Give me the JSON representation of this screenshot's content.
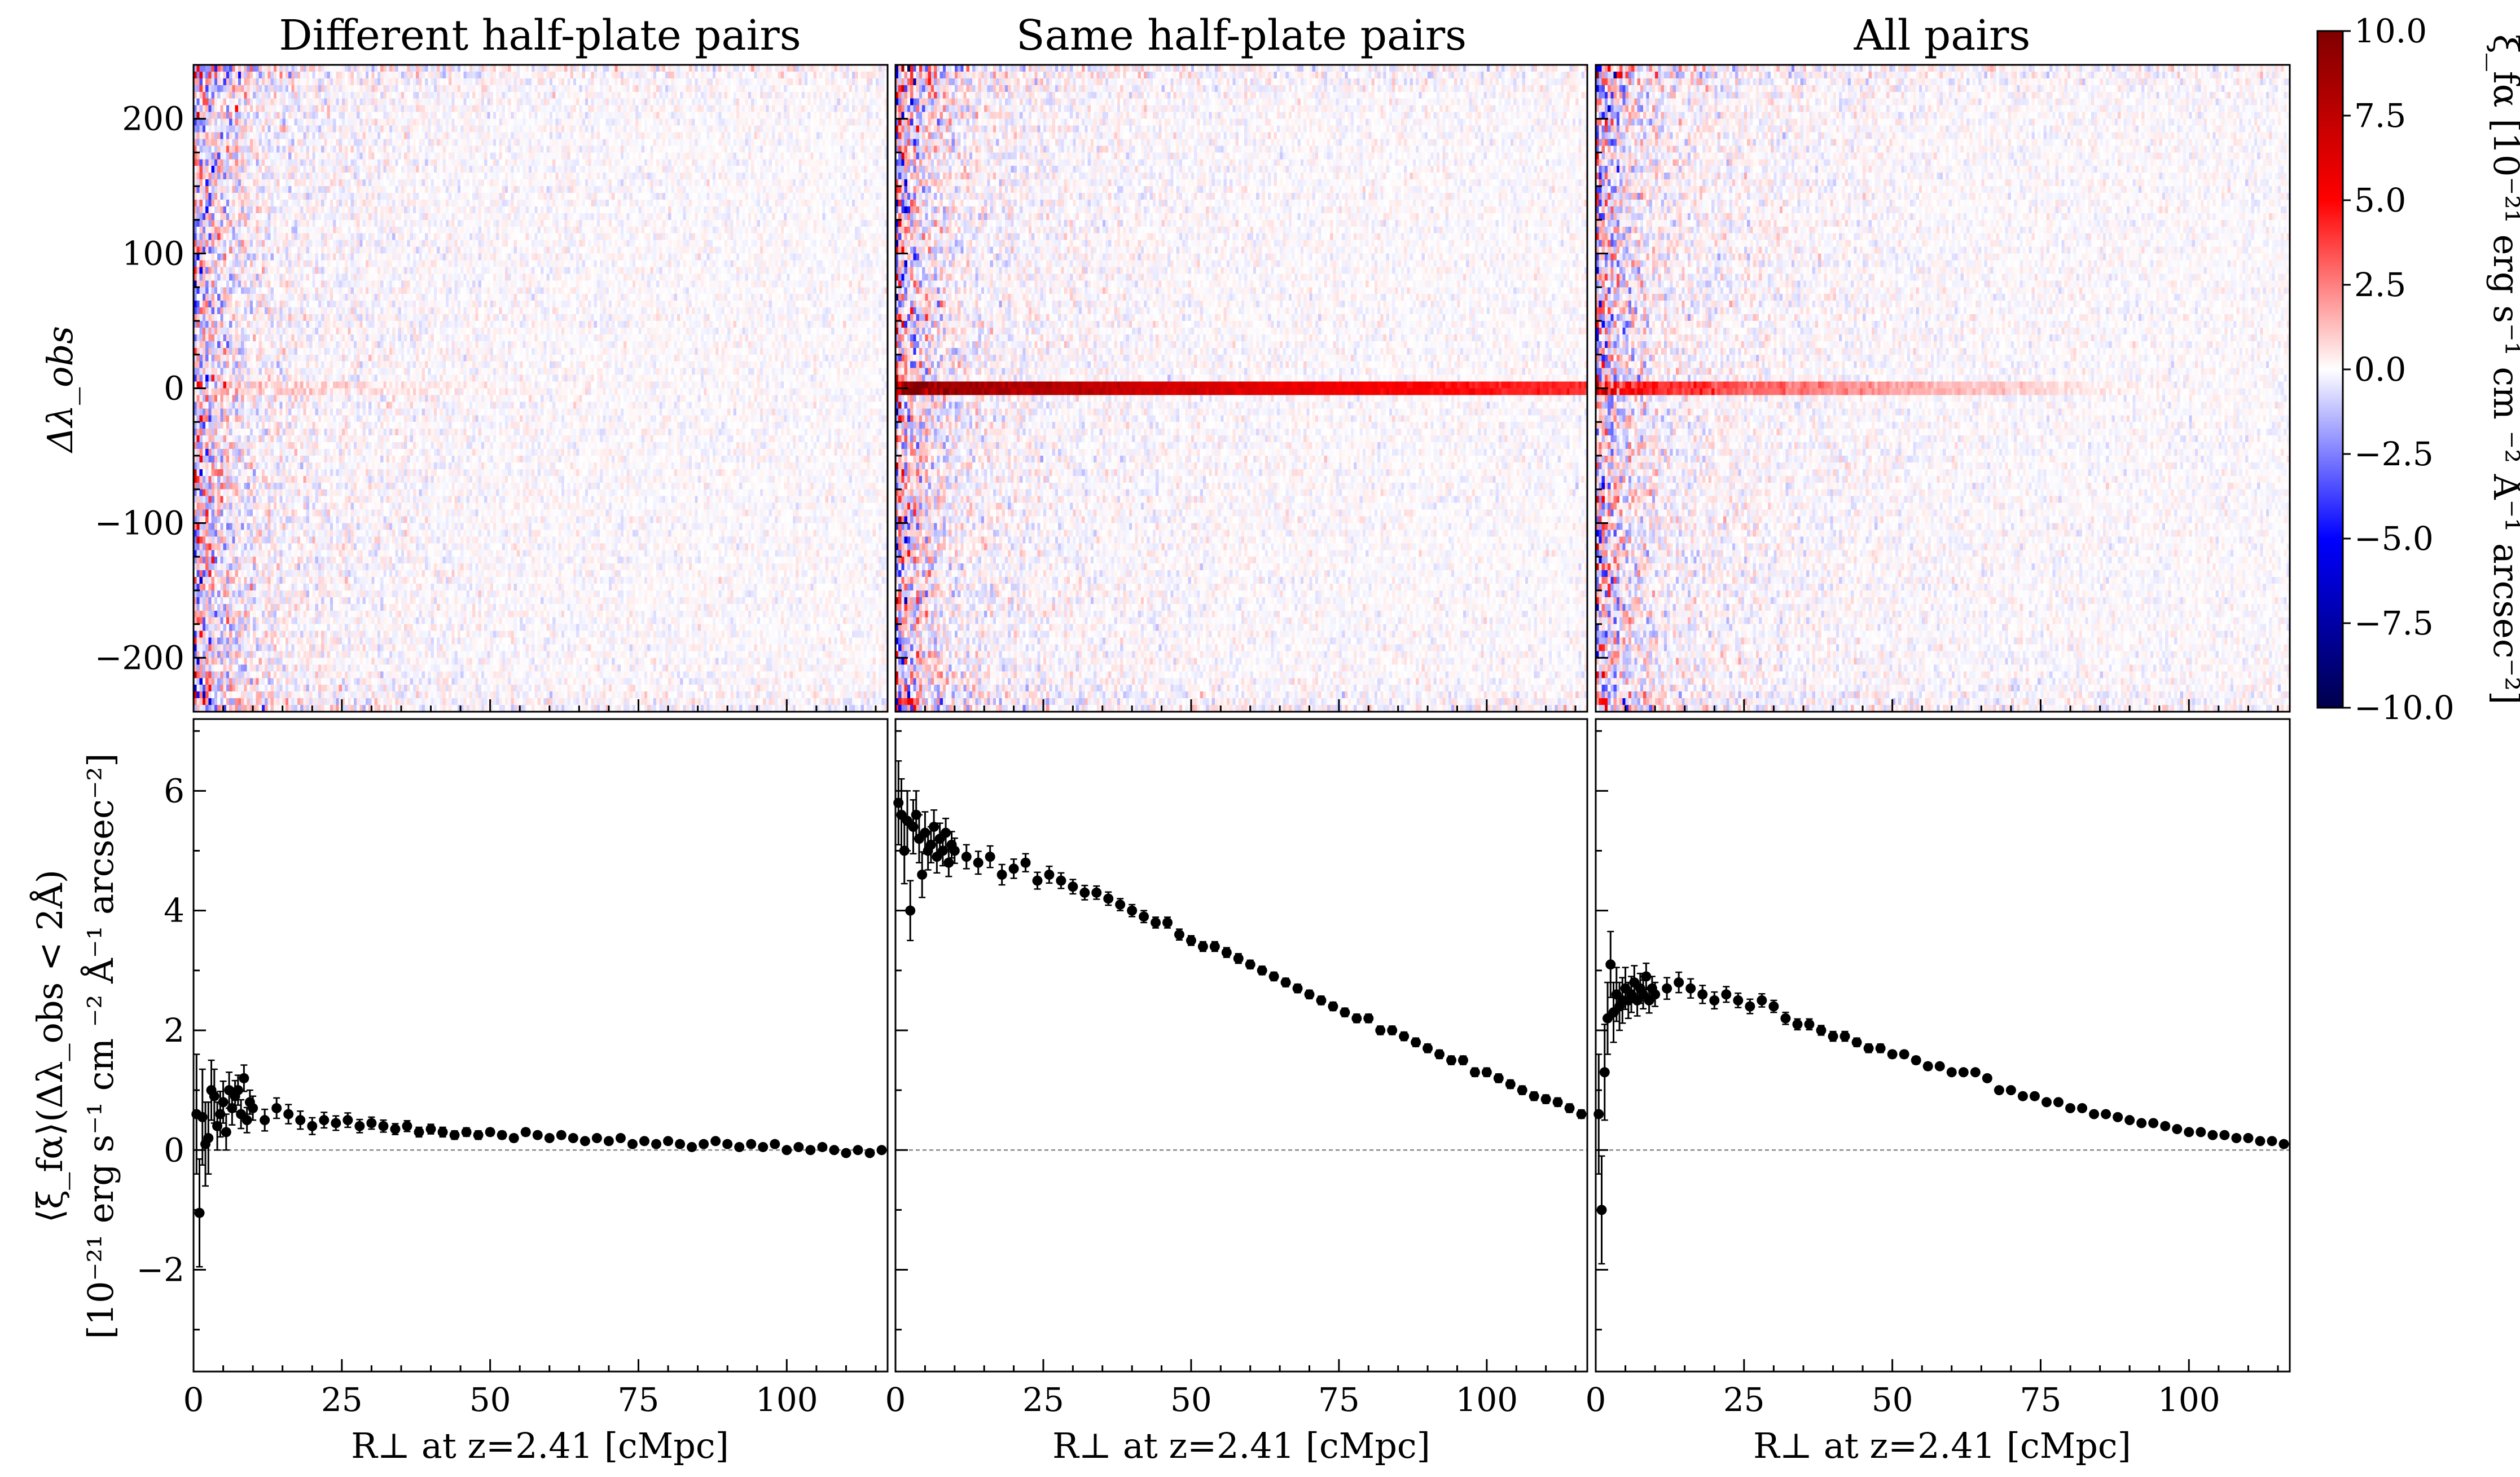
{
  "chart_data": [
    {
      "type": "heatmap",
      "title": "Different half-plate pairs",
      "xlim": [
        0,
        117
      ],
      "ylim": [
        -240,
        240
      ],
      "ylabel": "Δλ_obs",
      "yticks": [
        -200,
        -100,
        0,
        100,
        200
      ],
      "zero_line_strength": 0.12,
      "low_r_noise_strength": 0.6,
      "seed": 11
    },
    {
      "type": "heatmap",
      "title": "Same half-plate pairs",
      "xlim": [
        0,
        117
      ],
      "ylim": [
        -240,
        240
      ],
      "yticks": [
        -200,
        -100,
        0,
        100,
        200
      ],
      "zero_line_strength": 1.0,
      "low_r_noise_strength": 0.7,
      "seed": 23
    },
    {
      "type": "heatmap",
      "title": "All pairs",
      "xlim": [
        0,
        117
      ],
      "ylim": [
        -240,
        240
      ],
      "yticks": [
        -200,
        -100,
        0,
        100,
        200
      ],
      "zero_line_strength": 0.55,
      "low_r_noise_strength": 0.6,
      "seed": 37
    },
    {
      "type": "scatter",
      "title": "",
      "xlabel": "R⊥ at z=2.41 [cMpc]",
      "ylabel_line1": "⟨ξ_fα⟩(Δλ_obs < 2Å)",
      "ylabel_line2": "[10⁻²¹ erg s⁻¹ cm ⁻² Å⁻¹ arcsec⁻²]",
      "xlim": [
        0,
        117
      ],
      "ylim": [
        -3.7,
        7.2
      ],
      "xticks": [
        0,
        25,
        50,
        75,
        100
      ],
      "yticks": [
        -2,
        0,
        2,
        4,
        6
      ],
      "series": [
        {
          "x": [
            0.5,
            1,
            1.5,
            2,
            2.5,
            3,
            3.5,
            4,
            4.5,
            5,
            5.5,
            6,
            6.5,
            7,
            7.5,
            8,
            8.5,
            9,
            9.5,
            10,
            12,
            14,
            16,
            18,
            20,
            22,
            24,
            26,
            28,
            30,
            32,
            34,
            36,
            38,
            40,
            42,
            44,
            46,
            48,
            50,
            52,
            54,
            56,
            58,
            60,
            62,
            64,
            66,
            68,
            70,
            72,
            74,
            76,
            78,
            80,
            82,
            84,
            86,
            88,
            90,
            92,
            94,
            96,
            98,
            100,
            102,
            104,
            106,
            108,
            110,
            112,
            114,
            116
          ],
          "y": [
            0.6,
            -1.05,
            0.55,
            0.1,
            0.2,
            1.0,
            0.9,
            0.4,
            0.6,
            0.8,
            0.3,
            1.0,
            0.7,
            0.9,
            1.0,
            0.6,
            1.2,
            0.5,
            0.8,
            0.7,
            0.5,
            0.7,
            0.6,
            0.5,
            0.4,
            0.5,
            0.45,
            0.5,
            0.4,
            0.45,
            0.4,
            0.35,
            0.4,
            0.3,
            0.35,
            0.3,
            0.25,
            0.3,
            0.25,
            0.3,
            0.25,
            0.2,
            0.3,
            0.25,
            0.2,
            0.25,
            0.2,
            0.15,
            0.2,
            0.15,
            0.2,
            0.1,
            0.15,
            0.1,
            0.15,
            0.1,
            0.05,
            0.1,
            0.15,
            0.1,
            0.05,
            0.1,
            0.05,
            0.1,
            0.0,
            0.05,
            0.0,
            0.05,
            0.0,
            -0.05,
            0.0,
            -0.05,
            0.0
          ],
          "err": [
            1.0,
            0.9,
            0.8,
            0.7,
            0.6,
            0.5,
            0.45,
            0.4,
            0.38,
            0.35,
            0.3,
            0.3,
            0.28,
            0.26,
            0.25,
            0.24,
            0.22,
            0.21,
            0.2,
            0.2,
            0.18,
            0.17,
            0.16,
            0.15,
            0.14,
            0.13,
            0.12,
            0.12,
            0.11,
            0.1,
            0.1,
            0.09,
            0.09,
            0.08,
            0.08,
            0.08,
            0.07,
            0.07,
            0.07,
            0.06,
            0.06,
            0.06,
            0.06,
            0.05,
            0.05,
            0.05,
            0.05,
            0.05,
            0.05,
            0.04,
            0.04,
            0.04,
            0.04,
            0.04,
            0.04,
            0.04,
            0.04,
            0.04,
            0.04,
            0.04,
            0.04,
            0.04,
            0.04,
            0.04,
            0.04,
            0.04,
            0.04,
            0.04,
            0.04,
            0.04,
            0.04,
            0.04,
            0.04
          ]
        }
      ]
    },
    {
      "type": "scatter",
      "title": "",
      "xlabel": "R⊥ at z=2.41 [cMpc]",
      "xlim": [
        0,
        117
      ],
      "ylim": [
        -3.7,
        7.2
      ],
      "xticks": [
        0,
        25,
        50,
        75,
        100
      ],
      "yticks": [
        -2,
        0,
        2,
        4,
        6
      ],
      "series": [
        {
          "x": [
            0.5,
            1,
            1.5,
            2,
            2.5,
            3,
            3.5,
            4,
            4.5,
            5,
            5.5,
            6,
            6.5,
            7,
            7.5,
            8,
            8.5,
            9,
            9.5,
            10,
            12,
            14,
            16,
            18,
            20,
            22,
            24,
            26,
            28,
            30,
            32,
            34,
            36,
            38,
            40,
            42,
            44,
            46,
            48,
            50,
            52,
            54,
            56,
            58,
            60,
            62,
            64,
            66,
            68,
            70,
            72,
            74,
            76,
            78,
            80,
            82,
            84,
            86,
            88,
            90,
            92,
            94,
            96,
            98,
            100,
            102,
            104,
            106,
            108,
            110,
            112,
            114,
            116
          ],
          "y": [
            5.8,
            5.6,
            5.0,
            5.5,
            4.0,
            5.4,
            5.6,
            5.2,
            4.6,
            5.3,
            5.0,
            5.1,
            5.4,
            4.9,
            5.2,
            5.0,
            5.3,
            4.8,
            5.1,
            5.0,
            4.9,
            4.8,
            4.9,
            4.6,
            4.7,
            4.8,
            4.5,
            4.6,
            4.5,
            4.4,
            4.3,
            4.3,
            4.2,
            4.1,
            4.0,
            3.9,
            3.8,
            3.8,
            3.6,
            3.5,
            3.4,
            3.4,
            3.3,
            3.2,
            3.1,
            3.0,
            2.9,
            2.8,
            2.7,
            2.6,
            2.5,
            2.4,
            2.3,
            2.2,
            2.2,
            2.0,
            2.0,
            1.9,
            1.8,
            1.7,
            1.6,
            1.5,
            1.5,
            1.3,
            1.3,
            1.2,
            1.1,
            1.0,
            0.9,
            0.85,
            0.8,
            0.7,
            0.6
          ],
          "err": [
            0.7,
            0.6,
            0.55,
            0.5,
            0.5,
            0.45,
            0.4,
            0.4,
            0.38,
            0.35,
            0.32,
            0.3,
            0.28,
            0.27,
            0.26,
            0.25,
            0.24,
            0.23,
            0.22,
            0.21,
            0.2,
            0.19,
            0.18,
            0.17,
            0.16,
            0.15,
            0.14,
            0.14,
            0.13,
            0.12,
            0.12,
            0.11,
            0.11,
            0.1,
            0.1,
            0.1,
            0.09,
            0.09,
            0.09,
            0.08,
            0.08,
            0.08,
            0.08,
            0.08,
            0.07,
            0.07,
            0.07,
            0.07,
            0.07,
            0.07,
            0.07,
            0.07,
            0.07,
            0.07,
            0.07,
            0.07,
            0.07,
            0.07,
            0.07,
            0.07,
            0.07,
            0.07,
            0.07,
            0.07,
            0.07,
            0.07,
            0.07,
            0.07,
            0.07,
            0.07,
            0.07,
            0.07,
            0.07
          ]
        }
      ]
    },
    {
      "type": "scatter",
      "title": "",
      "xlabel": "R⊥ at z=2.41 [cMpc]",
      "xlim": [
        0,
        117
      ],
      "ylim": [
        -3.7,
        7.2
      ],
      "xticks": [
        0,
        25,
        50,
        75,
        100
      ],
      "yticks": [
        -2,
        0,
        2,
        4,
        6
      ],
      "series": [
        {
          "x": [
            0.5,
            1,
            1.5,
            2,
            2.5,
            3,
            3.5,
            4,
            4.5,
            5,
            5.5,
            6,
            6.5,
            7,
            7.5,
            8,
            8.5,
            9,
            9.5,
            10,
            12,
            14,
            16,
            18,
            20,
            22,
            24,
            26,
            28,
            30,
            32,
            34,
            36,
            38,
            40,
            42,
            44,
            46,
            48,
            50,
            52,
            54,
            56,
            58,
            60,
            62,
            64,
            66,
            68,
            70,
            72,
            74,
            76,
            78,
            80,
            82,
            84,
            86,
            88,
            90,
            92,
            94,
            96,
            98,
            100,
            102,
            104,
            106,
            108,
            110,
            112,
            114,
            116
          ],
          "y": [
            0.6,
            -1.0,
            1.3,
            2.2,
            3.1,
            2.3,
            2.6,
            2.4,
            2.5,
            2.7,
            2.5,
            2.6,
            2.8,
            2.5,
            2.7,
            2.6,
            2.9,
            2.5,
            2.7,
            2.6,
            2.7,
            2.8,
            2.7,
            2.6,
            2.5,
            2.6,
            2.5,
            2.4,
            2.5,
            2.4,
            2.2,
            2.1,
            2.1,
            2.0,
            1.9,
            1.9,
            1.8,
            1.7,
            1.7,
            1.6,
            1.6,
            1.5,
            1.4,
            1.4,
            1.3,
            1.3,
            1.3,
            1.2,
            1.0,
            1.0,
            0.9,
            0.9,
            0.8,
            0.8,
            0.7,
            0.7,
            0.6,
            0.6,
            0.55,
            0.5,
            0.45,
            0.45,
            0.4,
            0.35,
            0.3,
            0.3,
            0.25,
            0.25,
            0.2,
            0.2,
            0.15,
            0.15,
            0.1
          ],
          "err": [
            1.0,
            0.9,
            0.8,
            0.6,
            0.55,
            0.5,
            0.45,
            0.4,
            0.38,
            0.35,
            0.3,
            0.3,
            0.28,
            0.26,
            0.25,
            0.24,
            0.22,
            0.21,
            0.2,
            0.2,
            0.18,
            0.17,
            0.16,
            0.15,
            0.14,
            0.13,
            0.12,
            0.12,
            0.11,
            0.1,
            0.1,
            0.09,
            0.09,
            0.08,
            0.08,
            0.08,
            0.07,
            0.07,
            0.07,
            0.06,
            0.06,
            0.06,
            0.06,
            0.05,
            0.05,
            0.05,
            0.05,
            0.05,
            0.05,
            0.04,
            0.04,
            0.04,
            0.04,
            0.04,
            0.04,
            0.04,
            0.04,
            0.04,
            0.04,
            0.04,
            0.04,
            0.04,
            0.04,
            0.04,
            0.04,
            0.04,
            0.04,
            0.04,
            0.04,
            0.04,
            0.04,
            0.04,
            0.04
          ]
        }
      ]
    }
  ],
  "colorbar": {
    "label": "ξ_fα [10⁻²¹ erg s⁻¹ cm ⁻² Å⁻¹ arcsec⁻²]",
    "range": [
      -10,
      10
    ],
    "ticks": [
      -10,
      -7.5,
      -5,
      -2.5,
      0,
      2.5,
      5,
      7.5,
      10
    ],
    "tick_labels": [
      "−10.0",
      "−7.5",
      "−5.0",
      "−2.5",
      "0.0",
      "2.5",
      "5.0",
      "7.5",
      "10.0"
    ],
    "colormap": "seismic",
    "colors": {
      "low": "#00004c",
      "blue": "#0000ff",
      "mid": "#ffffff",
      "red": "#ff0000",
      "high": "#7f0000"
    }
  },
  "style": {
    "point_color": "#000000",
    "zero_line_color": "#888888"
  }
}
